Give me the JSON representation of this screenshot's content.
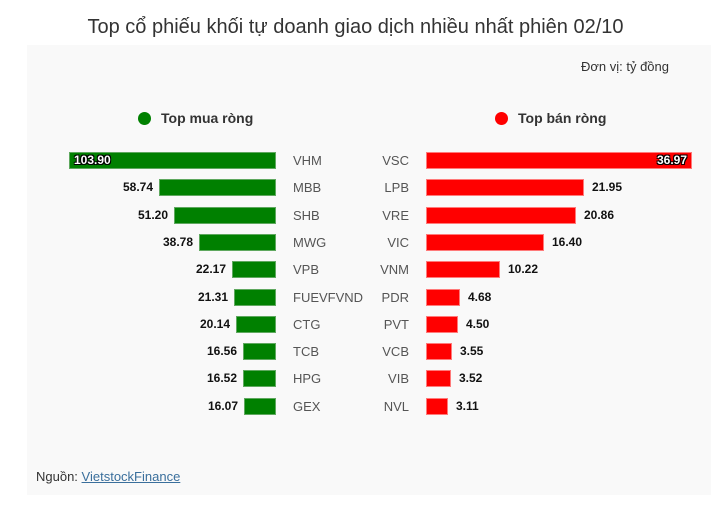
{
  "title": "Top cổ phiếu khối tự doanh giao dịch nhiều nhất phiên 02/10",
  "unit_label": "Đơn vị: tỷ đồng",
  "legend": {
    "buy": {
      "label": "Top mua ròng",
      "color": "#008000"
    },
    "sell": {
      "label": "Top bán ròng",
      "color": "#ff0000"
    }
  },
  "source": {
    "prefix": "Nguồn: ",
    "link_text": "VietstockFinance"
  },
  "buy": [
    {
      "ticker": "VHM",
      "value": "103.90"
    },
    {
      "ticker": "MBB",
      "value": "58.74"
    },
    {
      "ticker": "SHB",
      "value": "51.20"
    },
    {
      "ticker": "MWG",
      "value": "38.78"
    },
    {
      "ticker": "VPB",
      "value": "22.17"
    },
    {
      "ticker": "FUEVFVND",
      "value": "21.31"
    },
    {
      "ticker": "CTG",
      "value": "20.14"
    },
    {
      "ticker": "TCB",
      "value": "16.56"
    },
    {
      "ticker": "HPG",
      "value": "16.52"
    },
    {
      "ticker": "GEX",
      "value": "16.07"
    }
  ],
  "sell": [
    {
      "ticker": "VSC",
      "value": "36.97"
    },
    {
      "ticker": "LPB",
      "value": "21.95"
    },
    {
      "ticker": "VRE",
      "value": "20.86"
    },
    {
      "ticker": "VIC",
      "value": "16.40"
    },
    {
      "ticker": "VNM",
      "value": "10.22"
    },
    {
      "ticker": "PDR",
      "value": "4.68"
    },
    {
      "ticker": "PVT",
      "value": "4.50"
    },
    {
      "ticker": "VCB",
      "value": "3.55"
    },
    {
      "ticker": "VIB",
      "value": "3.52"
    },
    {
      "ticker": "NVL",
      "value": "3.11"
    }
  ],
  "chart_data": [
    {
      "type": "bar",
      "orientation": "horizontal",
      "title": "Top mua ròng",
      "categories": [
        "VHM",
        "MBB",
        "SHB",
        "MWG",
        "VPB",
        "FUEVFVND",
        "CTG",
        "TCB",
        "HPG",
        "GEX"
      ],
      "values": [
        103.9,
        58.74,
        51.2,
        38.78,
        22.17,
        21.31,
        20.14,
        16.56,
        16.52,
        16.07
      ],
      "color": "#008000",
      "xlabel": "",
      "ylabel": "",
      "unit": "tỷ đồng",
      "grid": false
    },
    {
      "type": "bar",
      "orientation": "horizontal",
      "title": "Top bán ròng",
      "categories": [
        "VSC",
        "LPB",
        "VRE",
        "VIC",
        "VNM",
        "PDR",
        "PVT",
        "VCB",
        "VIB",
        "NVL"
      ],
      "values": [
        36.97,
        21.95,
        20.86,
        16.4,
        10.22,
        4.68,
        4.5,
        3.55,
        3.52,
        3.11
      ],
      "color": "#ff0000",
      "xlabel": "",
      "ylabel": "",
      "unit": "tỷ đồng",
      "grid": false
    }
  ]
}
